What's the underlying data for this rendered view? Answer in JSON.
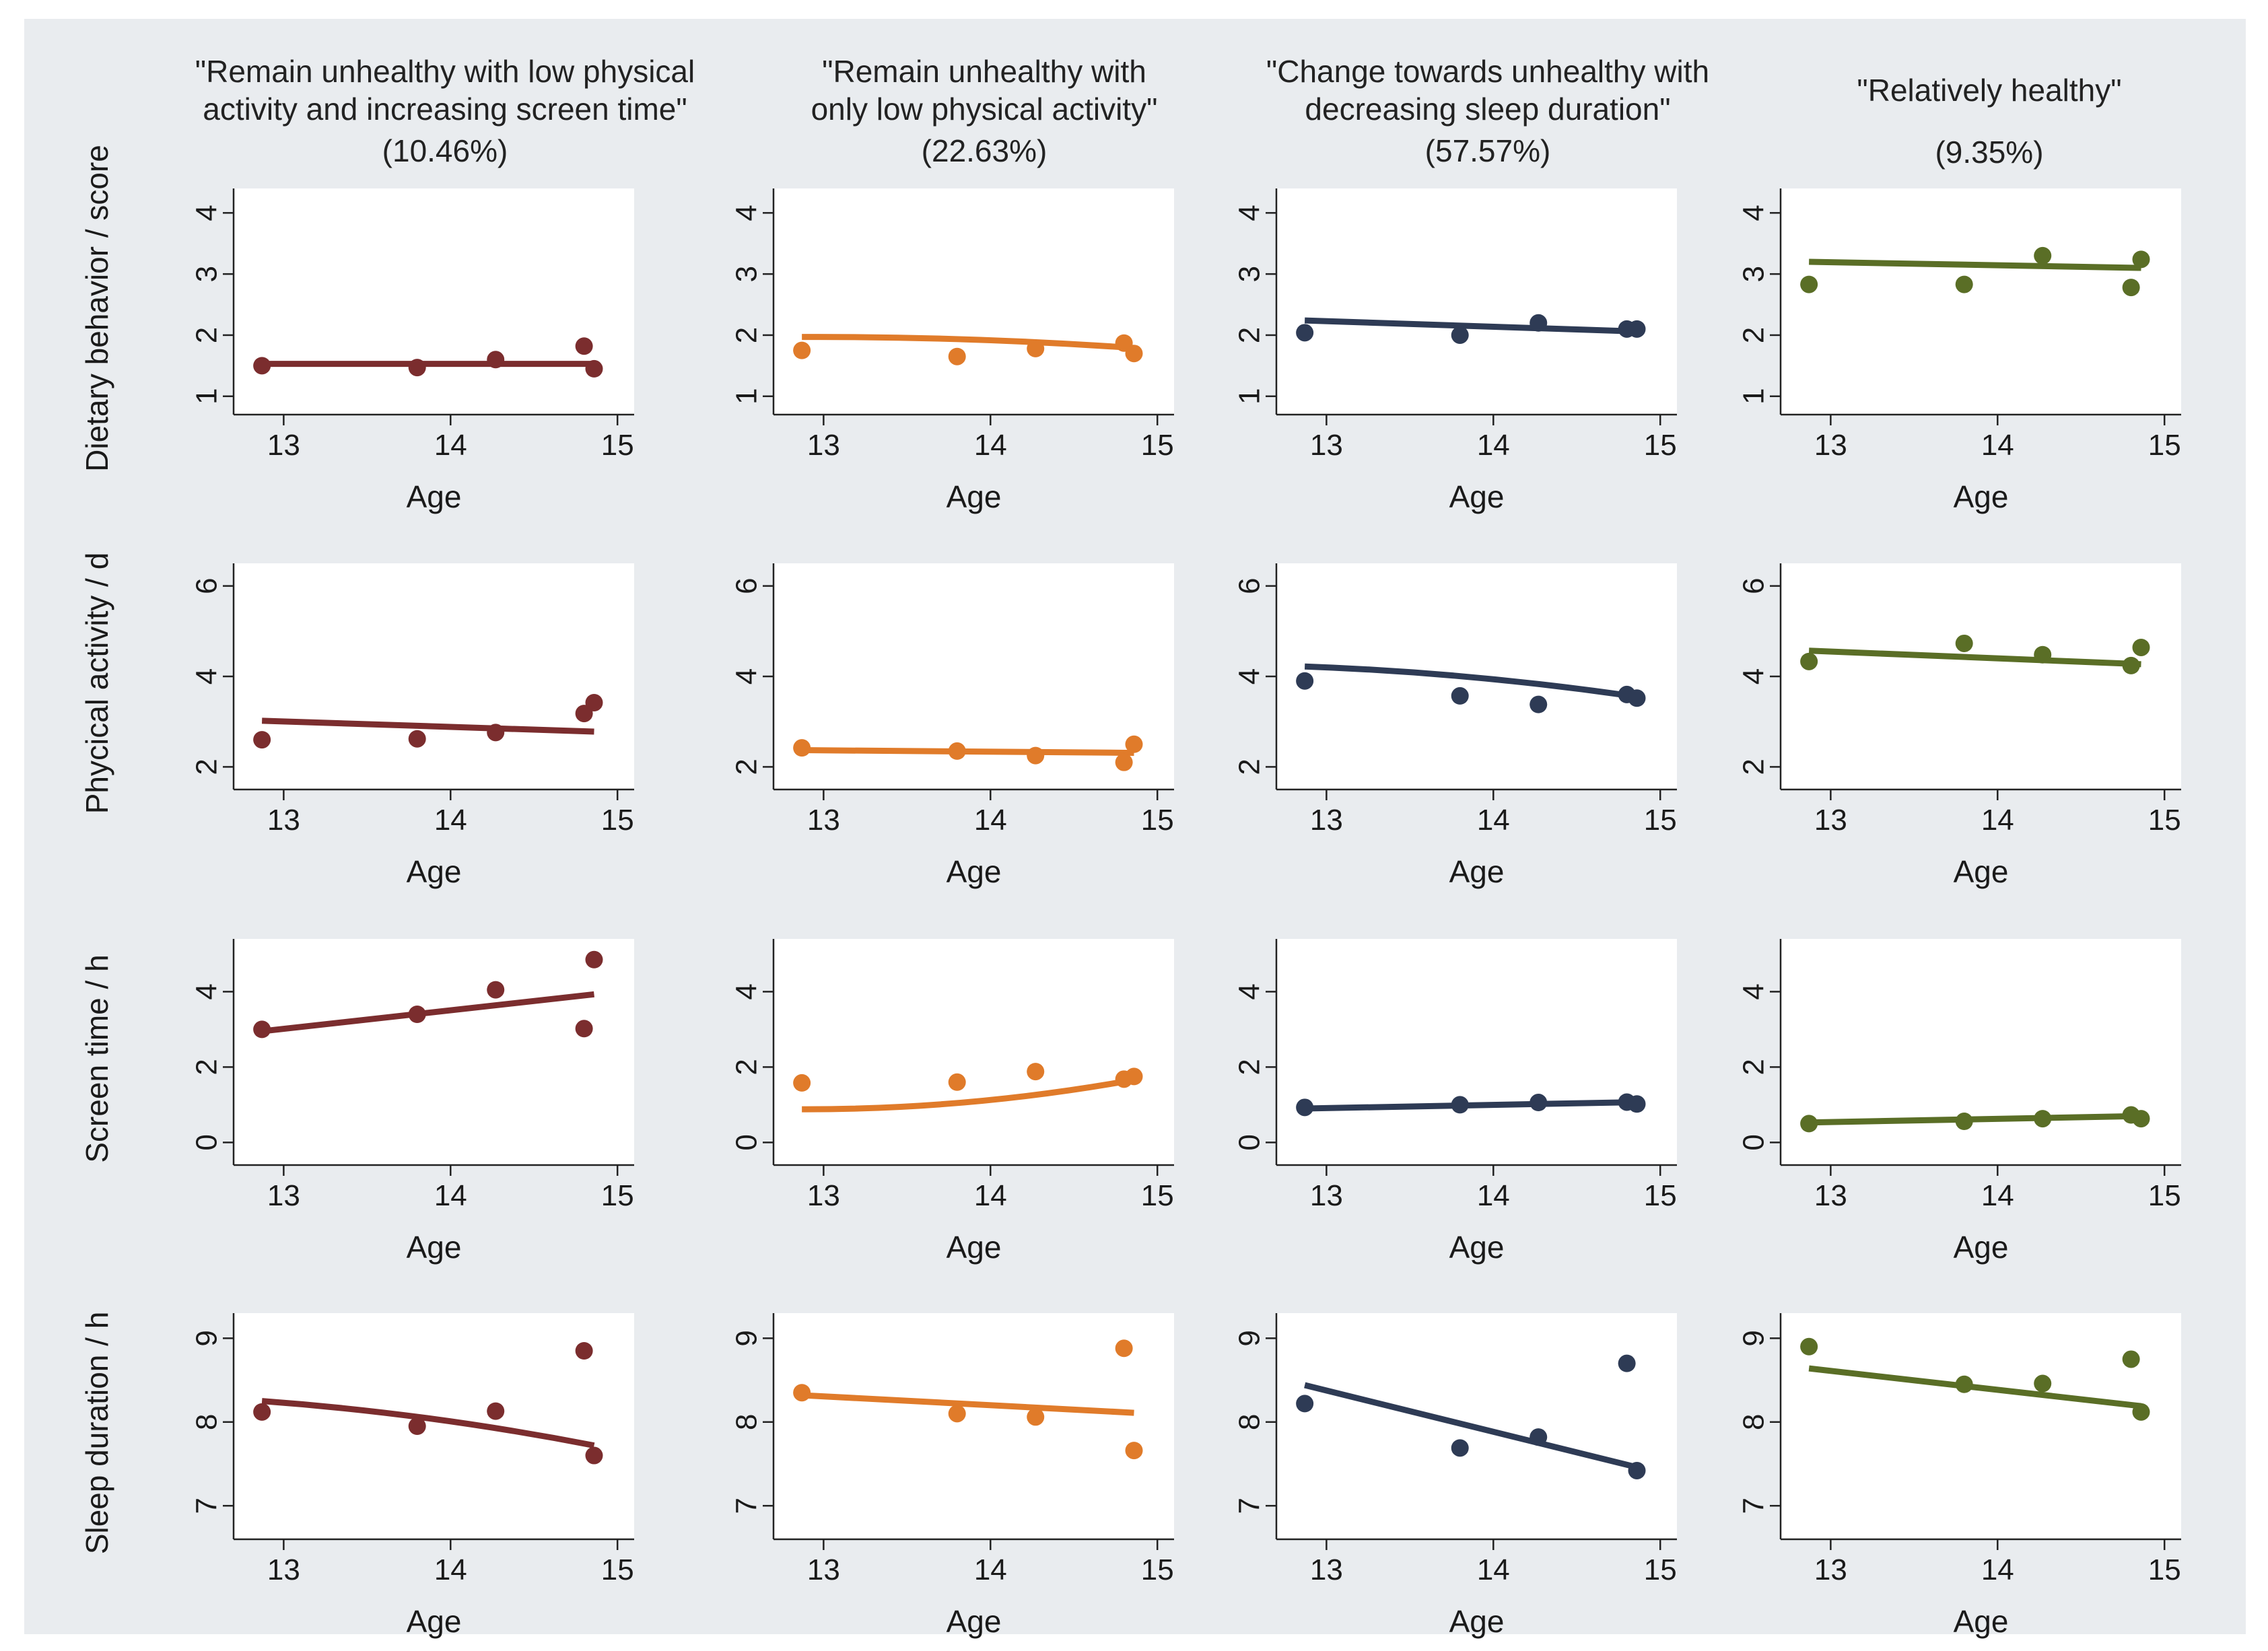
{
  "groups": [
    {
      "title_line1": "\"Remain unhealthy with low physical",
      "title_line2": "activity and increasing screen time\"",
      "percent": "(10.46%)",
      "color": "#7b2d2e"
    },
    {
      "title_line1": "\"Remain unhealthy with",
      "title_line2": "only low physical activity\"",
      "percent": "(22.63%)",
      "color": "#e07b2a"
    },
    {
      "title_line1": "\"Change towards unhealthy with",
      "title_line2": "decreasing sleep duration\"",
      "percent": "(57.57%)",
      "color": "#2e3b55"
    },
    {
      "title_line1": "\"Relatively healthy\"",
      "title_line2": "",
      "percent": "(9.35%)",
      "color": "#5a6e26"
    }
  ],
  "chart_data": {
    "type": "scatter",
    "layout": "4x4 small multiples (rows = outcomes, columns = trajectory groups)",
    "xlabel": "Age",
    "xlim": [
      12.7,
      15.1
    ],
    "x_ticks": [
      13,
      14,
      15
    ],
    "x_points": [
      12.87,
      13.8,
      14.27,
      14.8,
      14.86
    ],
    "rows": [
      {
        "ylabel": "Dietary behavior / score",
        "ylim": [
          0.7,
          4.4
        ],
        "y_ticks": [
          1,
          2,
          3,
          4
        ],
        "series": [
          {
            "group": 0,
            "points": [
              1.5,
              1.47,
              1.6,
              1.82,
              1.45
            ],
            "fit_start": 1.53,
            "fit_end": 1.53,
            "fit_curve": 0
          },
          {
            "group": 1,
            "points": [
              1.75,
              1.65,
              1.78,
              1.87,
              1.7
            ],
            "fit_start": 1.97,
            "fit_end": 1.79,
            "fit_curve": 0.05
          },
          {
            "group": 2,
            "points": [
              2.04,
              2.0,
              2.2,
              2.1,
              2.1
            ],
            "fit_start": 2.24,
            "fit_end": 2.06,
            "fit_curve": 0
          },
          {
            "group": 3,
            "points": [
              2.83,
              2.83,
              3.3,
              2.78,
              3.24
            ],
            "fit_start": 3.2,
            "fit_end": 3.1,
            "fit_curve": 0
          }
        ]
      },
      {
        "ylabel": "Phycical activity / d",
        "ylim": [
          1.5,
          6.5
        ],
        "y_ticks": [
          2,
          4,
          6
        ],
        "series": [
          {
            "group": 0,
            "points": [
              2.6,
              2.62,
              2.76,
              3.18,
              3.42
            ],
            "fit_start": 3.02,
            "fit_end": 2.78,
            "fit_curve": 0
          },
          {
            "group": 1,
            "points": [
              2.42,
              2.35,
              2.25,
              2.1,
              2.5
            ],
            "fit_start": 2.37,
            "fit_end": 2.31,
            "fit_curve": 0
          },
          {
            "group": 2,
            "points": [
              3.9,
              3.57,
              3.38,
              3.6,
              3.52
            ],
            "fit_start": 4.22,
            "fit_end": 3.55,
            "fit_curve": 0.1
          },
          {
            "group": 3,
            "points": [
              4.33,
              4.73,
              4.48,
              4.24,
              4.64
            ],
            "fit_start": 4.57,
            "fit_end": 4.27,
            "fit_curve": 0
          }
        ]
      },
      {
        "ylabel": "Screen time / h",
        "ylim": [
          -0.6,
          5.4
        ],
        "y_ticks": [
          0,
          2,
          4
        ],
        "series": [
          {
            "group": 0,
            "points": [
              3.0,
              3.4,
              4.05,
              3.02,
              4.85
            ],
            "fit_start": 2.95,
            "fit_end": 3.93,
            "fit_curve": 0
          },
          {
            "group": 1,
            "points": [
              1.58,
              1.6,
              1.88,
              1.68,
              1.75
            ],
            "fit_start": 0.88,
            "fit_end": 1.66,
            "fit_curve": -0.2
          },
          {
            "group": 2,
            "points": [
              0.93,
              1.0,
              1.06,
              1.07,
              1.02
            ],
            "fit_start": 0.9,
            "fit_end": 1.07,
            "fit_curve": 0
          },
          {
            "group": 3,
            "points": [
              0.5,
              0.56,
              0.63,
              0.73,
              0.63
            ],
            "fit_start": 0.53,
            "fit_end": 0.7,
            "fit_curve": 0
          }
        ]
      },
      {
        "ylabel": "Sleep duration / h",
        "ylim": [
          6.6,
          9.3
        ],
        "y_ticks": [
          7,
          8,
          9
        ],
        "series": [
          {
            "group": 0,
            "points": [
              8.12,
              7.95,
              8.13,
              8.85,
              7.6
            ],
            "fit_start": 8.25,
            "fit_end": 7.72,
            "fit_curve": 0.06
          },
          {
            "group": 1,
            "points": [
              8.35,
              8.1,
              8.06,
              8.88,
              7.66
            ],
            "fit_start": 8.32,
            "fit_end": 8.11,
            "fit_curve": 0
          },
          {
            "group": 2,
            "points": [
              8.22,
              7.69,
              7.82,
              8.7,
              7.42
            ],
            "fit_start": 8.44,
            "fit_end": 7.46,
            "fit_curve": 0
          },
          {
            "group": 3,
            "points": [
              8.9,
              8.45,
              8.46,
              8.75,
              8.12
            ],
            "fit_start": 8.64,
            "fit_end": 8.19,
            "fit_curve": 0
          }
        ]
      }
    ]
  }
}
